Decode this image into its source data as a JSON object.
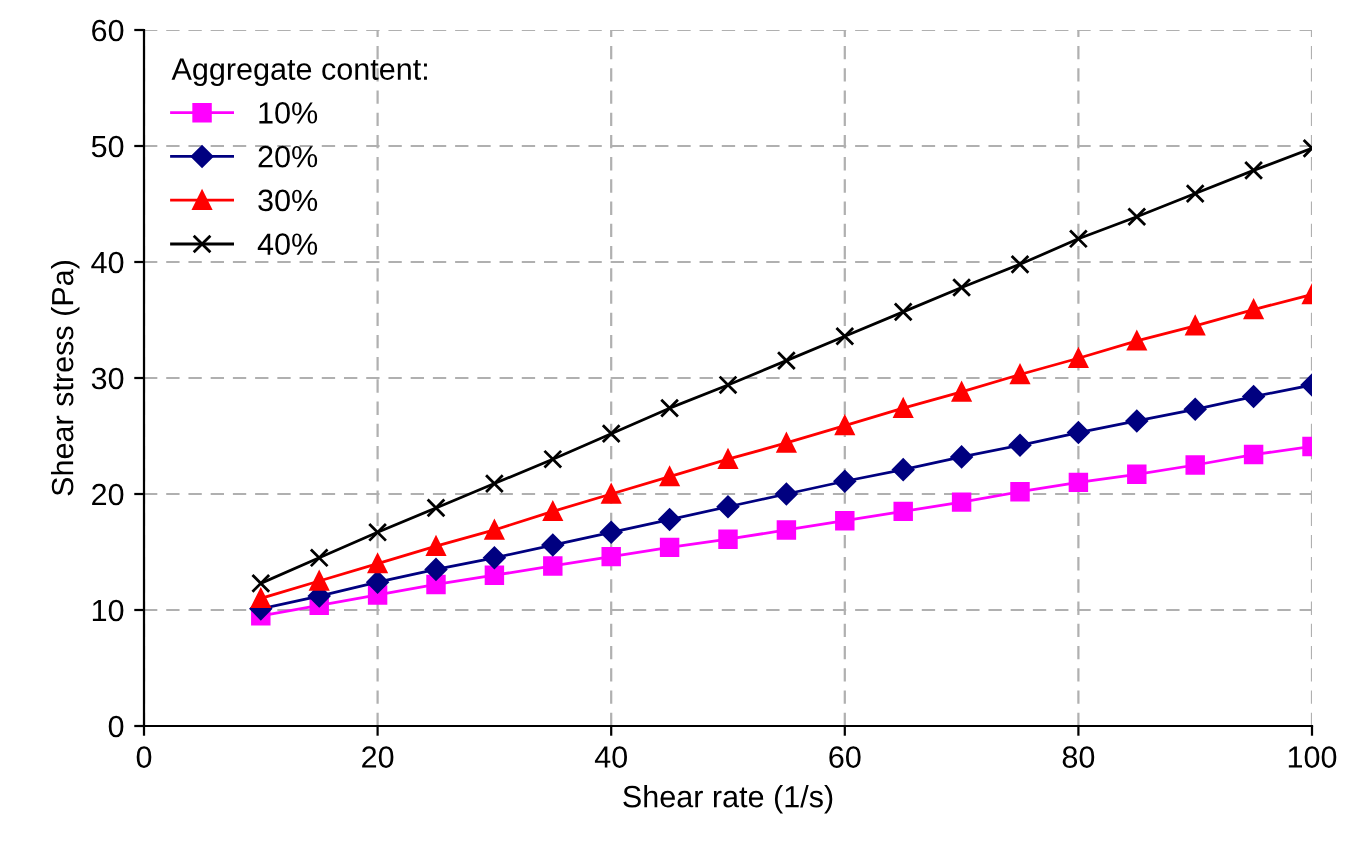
{
  "chart_data": {
    "type": "line",
    "xlabel": "Shear rate (1/s)",
    "ylabel": "Shear stress (Pa)",
    "legend_title": "Aggregate content:",
    "legend": "top left",
    "grid": true,
    "line_style": "solid",
    "x": [
      10,
      15,
      20,
      25,
      30,
      35,
      40,
      45,
      50,
      55,
      60,
      65,
      70,
      75,
      80,
      85,
      90,
      95,
      100
    ],
    "xlim": [
      0,
      100
    ],
    "xticks": [
      0,
      20,
      40,
      60,
      80,
      100
    ],
    "ylim": [
      0,
      60
    ],
    "yticks": [
      0,
      10,
      20,
      30,
      40,
      50,
      60
    ],
    "series": [
      {
        "name": "10%",
        "color": "#ff00ff",
        "marker": "square",
        "values": [
          9.5,
          10.4,
          11.3,
          12.2,
          13.0,
          13.8,
          14.6,
          15.4,
          16.1,
          16.9,
          17.7,
          18.5,
          19.3,
          20.2,
          21.0,
          21.7,
          22.5,
          23.4,
          24.1
        ]
      },
      {
        "name": "20%",
        "color": "#000080",
        "marker": "diamond",
        "values": [
          10.1,
          11.2,
          12.4,
          13.5,
          14.5,
          15.6,
          16.7,
          17.8,
          18.9,
          20.0,
          21.1,
          22.1,
          23.2,
          24.2,
          25.3,
          26.3,
          27.3,
          28.4,
          29.4
        ]
      },
      {
        "name": "30%",
        "color": "#ff0000",
        "marker": "triangle",
        "values": [
          11.0,
          12.5,
          14.0,
          15.5,
          16.9,
          18.5,
          20.0,
          21.5,
          23.0,
          24.4,
          25.9,
          27.4,
          28.8,
          30.3,
          31.7,
          33.2,
          34.5,
          35.9,
          37.2
        ]
      },
      {
        "name": "40%",
        "color": "#000000",
        "marker": "cross",
        "values": [
          12.3,
          14.5,
          16.7,
          18.8,
          20.9,
          23.0,
          25.2,
          27.4,
          29.4,
          31.5,
          33.6,
          35.7,
          37.8,
          39.8,
          42.0,
          43.9,
          45.9,
          47.9,
          49.8
        ]
      }
    ]
  }
}
